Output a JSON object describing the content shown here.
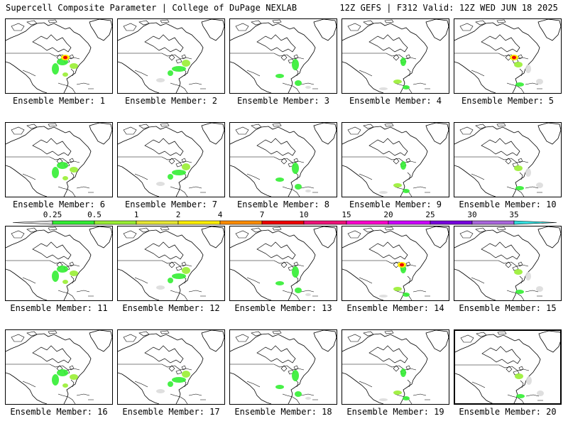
{
  "header": {
    "left": "Supercell Composite Parameter | College of DuPage NEXLAB",
    "right": "12Z GEFS | F312 Valid: 12Z WED JUN 18 2025"
  },
  "colorbar": {
    "labels": [
      "0.25",
      "0.5",
      "1",
      "2",
      "4",
      "7",
      "10",
      "15",
      "20",
      "25",
      "30",
      "35"
    ],
    "colors": [
      "#dcdcdc",
      "#33ee33",
      "#99ee33",
      "#e6e633",
      "#ffee00",
      "#ff8c00",
      "#ee0000",
      "#ee1177",
      "#ff00cc",
      "#cc00ff",
      "#7700dd",
      "#aa66dd",
      "#33dddd"
    ]
  },
  "members": [
    {
      "label": "Ensemble Member: 1",
      "hot": true
    },
    {
      "label": "Ensemble Member: 2"
    },
    {
      "label": "Ensemble Member: 3"
    },
    {
      "label": "Ensemble Member: 4"
    },
    {
      "label": "Ensemble Member: 5",
      "hot": true
    },
    {
      "label": "Ensemble Member: 6"
    },
    {
      "label": "Ensemble Member: 7"
    },
    {
      "label": "Ensemble Member: 8"
    },
    {
      "label": "Ensemble Member: 9"
    },
    {
      "label": "Ensemble Member: 10"
    },
    {
      "label": "Ensemble Member: 11"
    },
    {
      "label": "Ensemble Member: 12"
    },
    {
      "label": "Ensemble Member: 13"
    },
    {
      "label": "Ensemble Member: 14",
      "hot": true
    },
    {
      "label": "Ensemble Member: 15"
    },
    {
      "label": "Ensemble Member: 16"
    },
    {
      "label": "Ensemble Member: 17"
    },
    {
      "label": "Ensemble Member: 18"
    },
    {
      "label": "Ensemble Member: 19"
    },
    {
      "label": "Ensemble Member: 20",
      "selected": true
    }
  ]
}
